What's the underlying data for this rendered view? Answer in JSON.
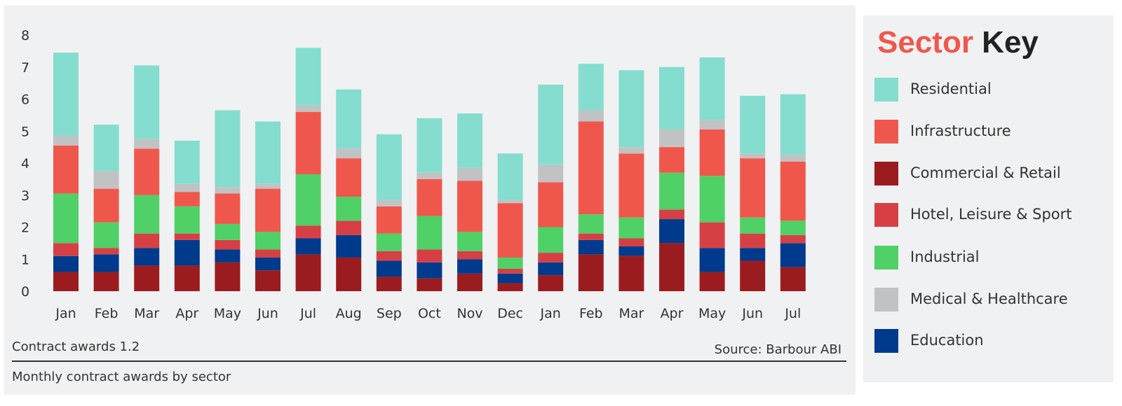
{
  "chart_data": {
    "type": "bar",
    "stacked": true,
    "categories": [
      "Jan",
      "Feb",
      "Mar",
      "Apr",
      "May",
      "Jun",
      "Jul",
      "Aug",
      "Sep",
      "Oct",
      "Nov",
      "Dec",
      "Jan",
      "Feb",
      "Mar",
      "Apr",
      "May",
      "Jun",
      "Jul"
    ],
    "yticks": [
      "0",
      "1",
      "2",
      "3",
      "4",
      "5",
      "6",
      "7",
      "8"
    ],
    "ylim": [
      0,
      8
    ],
    "grid": false,
    "legend_position": "right",
    "series": [
      {
        "name": "Commercial & Retail",
        "color": "#9b1c1f",
        "values": [
          0.6,
          0.6,
          0.8,
          0.8,
          0.9,
          0.65,
          1.15,
          1.05,
          0.45,
          0.4,
          0.55,
          0.25,
          0.5,
          1.15,
          1.1,
          1.5,
          0.6,
          0.95,
          0.75
        ]
      },
      {
        "name": "Education",
        "color": "#003a8c",
        "values": [
          0.5,
          0.55,
          0.55,
          0.8,
          0.4,
          0.4,
          0.5,
          0.7,
          0.5,
          0.5,
          0.45,
          0.3,
          0.4,
          0.45,
          0.3,
          0.75,
          0.75,
          0.4,
          0.75
        ]
      },
      {
        "name": "Hotel, Leisure & Sport",
        "color": "#d64045",
        "values": [
          0.4,
          0.2,
          0.45,
          0.2,
          0.3,
          0.25,
          0.4,
          0.45,
          0.3,
          0.4,
          0.25,
          0.15,
          0.3,
          0.2,
          0.25,
          0.3,
          0.8,
          0.45,
          0.25
        ]
      },
      {
        "name": "Industrial",
        "color": "#4fd167",
        "values": [
          1.55,
          0.8,
          1.2,
          0.85,
          0.5,
          0.55,
          1.6,
          0.75,
          0.55,
          1.05,
          0.6,
          0.35,
          0.8,
          0.6,
          0.65,
          1.15,
          1.45,
          0.5,
          0.45
        ]
      },
      {
        "name": "Infrastructure",
        "color": "#f0574c",
        "values": [
          1.5,
          1.05,
          1.45,
          0.45,
          0.95,
          1.35,
          1.95,
          1.2,
          0.85,
          1.15,
          1.6,
          1.7,
          1.4,
          2.9,
          2.0,
          0.8,
          1.45,
          1.85,
          1.85
        ]
      },
      {
        "name": "Medical & Healthcare",
        "color": "#c1c2c3",
        "values": [
          0.3,
          0.55,
          0.3,
          0.25,
          0.2,
          0.15,
          0.2,
          0.3,
          0.2,
          0.2,
          0.4,
          0.1,
          0.55,
          0.35,
          0.2,
          0.55,
          0.3,
          0.15,
          0.2
        ]
      },
      {
        "name": "Residential",
        "color": "#85ddcf",
        "values": [
          2.6,
          1.45,
          2.3,
          1.35,
          2.4,
          1.95,
          1.8,
          1.85,
          2.05,
          1.7,
          1.7,
          1.45,
          2.5,
          1.45,
          2.4,
          1.95,
          1.95,
          1.8,
          1.9
        ]
      }
    ],
    "xlabel": "",
    "ylabel": ""
  },
  "captions": {
    "figure_label": "Contract awards 1.2",
    "source": "Source: Barbour ABI",
    "subtitle": "Monthly contract awards by sector"
  },
  "legend": {
    "title_word1": "Sector",
    "title_word2": " Key",
    "items": [
      {
        "label": "Residential",
        "color": "#85ddcf"
      },
      {
        "label": "Infrastructure",
        "color": "#f0574c"
      },
      {
        "label": "Commercial & Retail",
        "color": "#9b1c1f"
      },
      {
        "label": "Hotel, Leisure & Sport",
        "color": "#d64045"
      },
      {
        "label": "Industrial",
        "color": "#4fd167"
      },
      {
        "label": "Medical & Healthcare",
        "color": "#c1c2c3"
      },
      {
        "label": "Education",
        "color": "#003a8c"
      }
    ]
  }
}
